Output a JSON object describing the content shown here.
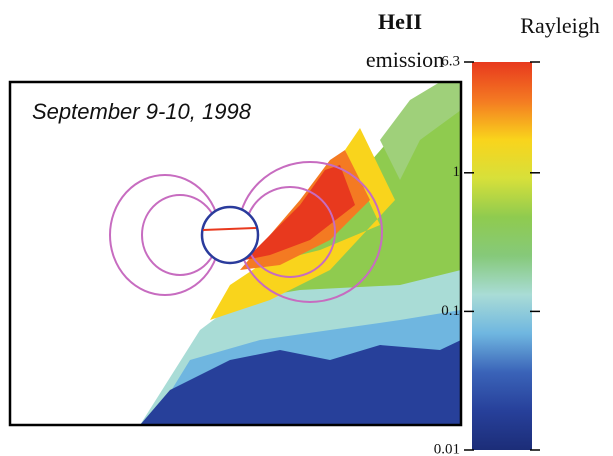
{
  "chart_data": {
    "type": "image-map",
    "annotation": "September 9-10, 1998",
    "colorbar": {
      "title_lines": [
        "HeII",
        "emission"
      ],
      "unit": "Rayleigh",
      "ylim": [
        0.01,
        6.3
      ],
      "yticks": [
        0.01,
        0.1,
        1,
        6.3
      ],
      "log": true,
      "colors": [
        "#e8391e",
        "#f47a22",
        "#f9d41c",
        "#d7e03a",
        "#8fcb4f",
        "#86c97a",
        "#a9dcd6",
        "#6fb6e0",
        "#3a63b8",
        "#27409a",
        "#1c2d78"
      ]
    }
  }
}
